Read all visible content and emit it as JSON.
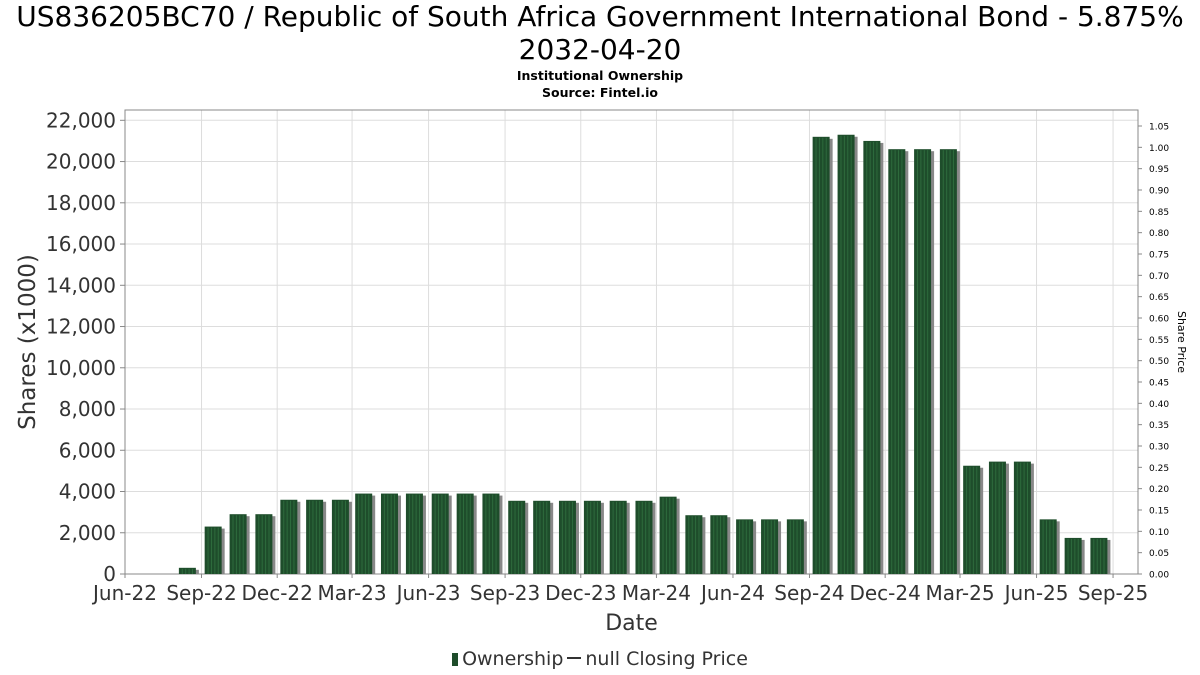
{
  "title_line1": "US836205BC70 / Republic of South Africa Government International Bond - 5.875%",
  "title_line2": "2032-04-20",
  "subtitle_line1": "Institutional Ownership",
  "subtitle_line2": "Source: Fintel.io",
  "legend": {
    "ownership": "Ownership",
    "price": "null Closing Price"
  },
  "colors": {
    "bar": "#1e4d2b",
    "bar_stripe": "#2e6b3d",
    "shadow": "#888888",
    "grid": "#dddddd"
  },
  "chart_data": {
    "type": "bar",
    "xlabel": "Date",
    "ylabel": "Shares (x1000)",
    "y2label": "Share Price",
    "ylim": [
      0,
      22500
    ],
    "y2lim": [
      0,
      1.05
    ],
    "grid": true,
    "legend_position": "bottom",
    "x_ticks": [
      "Jun-22",
      "Sep-22",
      "Dec-22",
      "Mar-23",
      "Jun-23",
      "Sep-23",
      "Dec-23",
      "Mar-24",
      "Jun-24",
      "Sep-24",
      "Dec-24",
      "Mar-25",
      "Jun-25",
      "Sep-25"
    ],
    "y_ticks": [
      "0",
      "2,000",
      "4,000",
      "6,000",
      "8,000",
      "10,000",
      "12,000",
      "14,000",
      "16,000",
      "18,000",
      "20,000",
      "22,000"
    ],
    "y2_ticks": [
      "0.00",
      "0.05",
      "0.10",
      "0.15",
      "0.20",
      "0.25",
      "0.30",
      "0.35",
      "0.40",
      "0.45",
      "0.50",
      "0.55",
      "0.60",
      "0.65",
      "0.70",
      "0.75",
      "0.80",
      "0.85",
      "0.90",
      "0.95",
      "1.00",
      "1.05"
    ],
    "series": [
      {
        "name": "Ownership",
        "x": [
          "2022-08-15",
          "2022-09-15",
          "2022-10-15",
          "2022-11-15",
          "2022-12-15",
          "2023-01-15",
          "2023-02-15",
          "2023-03-15",
          "2023-04-15",
          "2023-05-15",
          "2023-06-15",
          "2023-07-15",
          "2023-08-15",
          "2023-09-15",
          "2023-10-15",
          "2023-11-15",
          "2023-12-15",
          "2024-01-15",
          "2024-02-15",
          "2024-03-15",
          "2024-04-15",
          "2024-05-15",
          "2024-06-15",
          "2024-07-15",
          "2024-08-15",
          "2024-09-15",
          "2024-10-15",
          "2024-11-15",
          "2024-12-15",
          "2025-01-15",
          "2025-02-15",
          "2025-03-15",
          "2025-04-15",
          "2025-05-15",
          "2025-06-15",
          "2025-07-15",
          "2025-08-15"
        ],
        "values": [
          300,
          2300,
          2900,
          2900,
          3600,
          3600,
          3600,
          3900,
          3900,
          3900,
          3900,
          3900,
          3900,
          3550,
          3550,
          3550,
          3550,
          3550,
          3550,
          3750,
          2850,
          2850,
          2650,
          2650,
          2650,
          21200,
          21300,
          21000,
          20600,
          20600,
          20600,
          5250,
          5450,
          5450,
          2650,
          1750,
          1750
        ]
      }
    ]
  }
}
